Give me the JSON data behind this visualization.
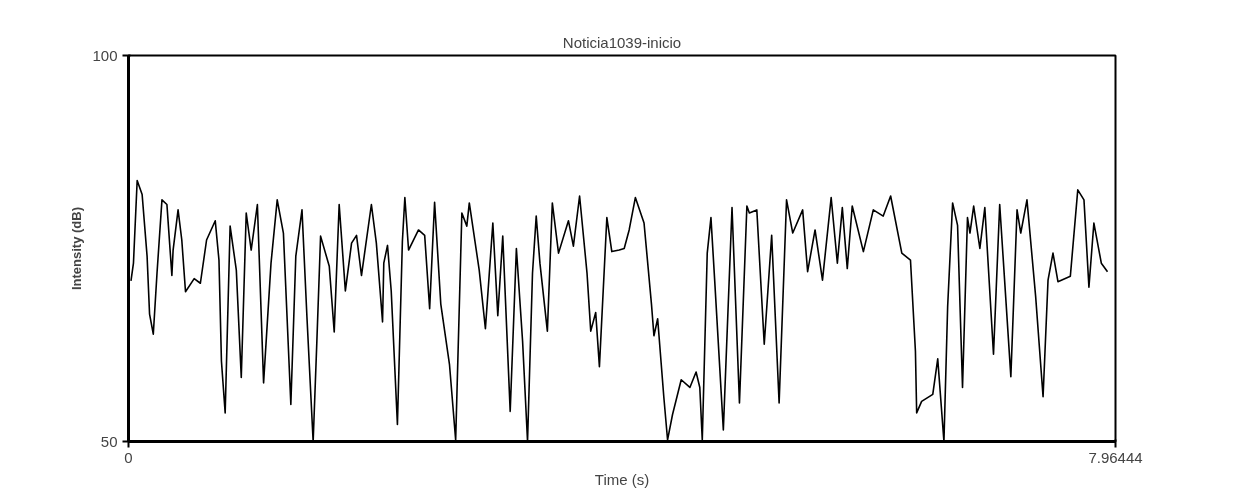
{
  "chart_data": {
    "type": "line",
    "title": "Noticia1039-inicio",
    "xlabel": "Time (s)",
    "ylabel": "Intensity (dB)",
    "xlim": [
      0,
      7.96444
    ],
    "xticks": [
      0,
      7.96444
    ],
    "ylim": [
      50,
      100
    ],
    "yticks": [
      50,
      100
    ],
    "series": [
      {
        "color": "#000000",
        "x": [
          0.02,
          0.04,
          0.07,
          0.11,
          0.15,
          0.17,
          0.2,
          0.23,
          0.27,
          0.31,
          0.35,
          0.36,
          0.4,
          0.43,
          0.46,
          0.53,
          0.58,
          0.63,
          0.7,
          0.73,
          0.75,
          0.78,
          0.82,
          0.87,
          0.91,
          0.95,
          0.99,
          1.04,
          1.09,
          1.15,
          1.2,
          1.25,
          1.31,
          1.35,
          1.4,
          1.44,
          1.49,
          1.52,
          1.55,
          1.62,
          1.66,
          1.7,
          1.75,
          1.8,
          1.84,
          1.88,
          1.96,
          2.0,
          2.05,
          2.06,
          2.09,
          2.12,
          2.17,
          2.21,
          2.23,
          2.26,
          2.34,
          2.39,
          2.43,
          2.47,
          2.52,
          2.59,
          2.64,
          2.69,
          2.73,
          2.75,
          2.83,
          2.88,
          2.94,
          2.98,
          3.02,
          3.08,
          3.13,
          3.18,
          3.22,
          3.26,
          3.29,
          3.32,
          3.38,
          3.42,
          3.47,
          3.55,
          3.59,
          3.64,
          3.7,
          3.73,
          3.77,
          3.8,
          3.86,
          3.9,
          3.96,
          4.0,
          4.04,
          4.09,
          4.16,
          4.22,
          4.24,
          4.27,
          4.32,
          4.35,
          4.39,
          4.46,
          4.53,
          4.58,
          4.61,
          4.63,
          4.67,
          4.7,
          4.73,
          4.8,
          4.87,
          4.93,
          4.99,
          5.01,
          5.07,
          5.13,
          5.19,
          5.25,
          5.31,
          5.36,
          5.44,
          5.48,
          5.54,
          5.6,
          5.67,
          5.72,
          5.76,
          5.8,
          5.84,
          5.93,
          6.01,
          6.09,
          6.15,
          6.24,
          6.31,
          6.35,
          6.36,
          6.4,
          6.49,
          6.53,
          6.58,
          6.61,
          6.65,
          6.69,
          6.73,
          6.77,
          6.79,
          6.82,
          6.87,
          6.91,
          6.98,
          7.03,
          7.12,
          7.17,
          7.2,
          7.25,
          7.32,
          7.38,
          7.42,
          7.46,
          7.5,
          7.6,
          7.66,
          7.71,
          7.75,
          7.79,
          7.85,
          7.9
        ],
        "values": [
          70.8,
          73.1,
          83.8,
          82.0,
          74.0,
          66.5,
          63.9,
          71.8,
          81.3,
          80.7,
          71.5,
          74.8,
          80.0,
          76.1,
          69.4,
          71.1,
          70.5,
          76.1,
          78.6,
          73.5,
          60.4,
          53.7,
          77.9,
          72.2,
          58.3,
          79.6,
          74.8,
          80.7,
          57.6,
          73.1,
          81.3,
          77.0,
          54.8,
          74.0,
          80.0,
          66.1,
          50.0,
          63.0,
          76.6,
          72.7,
          64.2,
          80.7,
          69.5,
          75.7,
          76.7,
          71.5,
          80.7,
          75.7,
          65.5,
          73.1,
          75.4,
          69.5,
          52.2,
          75.9,
          81.6,
          74.8,
          77.4,
          76.7,
          67.2,
          81.0,
          67.8,
          60.0,
          50.2,
          79.6,
          77.9,
          80.9,
          72.2,
          64.6,
          78.3,
          66.3,
          76.6,
          53.9,
          75.0,
          63.0,
          50.0,
          71.8,
          79.2,
          73.1,
          64.3,
          80.9,
          74.4,
          78.6,
          75.3,
          81.8,
          71.8,
          64.3,
          66.7,
          59.7,
          79.0,
          74.6,
          74.8,
          75.0,
          77.4,
          81.6,
          78.3,
          67.8,
          63.7,
          65.9,
          55.7,
          50.2,
          53.5,
          58.0,
          57.0,
          59.0,
          57.0,
          50.2,
          74.4,
          79.0,
          70.9,
          51.5,
          80.3,
          55.0,
          80.5,
          79.6,
          80.0,
          62.6,
          76.7,
          55.0,
          81.3,
          77.0,
          80.0,
          72.0,
          77.4,
          70.9,
          81.6,
          73.1,
          80.3,
          72.4,
          80.5,
          74.6,
          80.0,
          79.2,
          81.8,
          74.4,
          73.5,
          61.7,
          53.7,
          55.2,
          56.1,
          60.7,
          50.0,
          67.5,
          80.9,
          78.0,
          57.0,
          79.0,
          77.0,
          80.5,
          75.0,
          80.3,
          61.3,
          80.7,
          58.4,
          80.0,
          77.0,
          81.3,
          68.8,
          55.8,
          70.9,
          74.4,
          70.7,
          71.4,
          82.6,
          81.3,
          70.0,
          78.3,
          73.1,
          72.0
        ]
      }
    ]
  }
}
